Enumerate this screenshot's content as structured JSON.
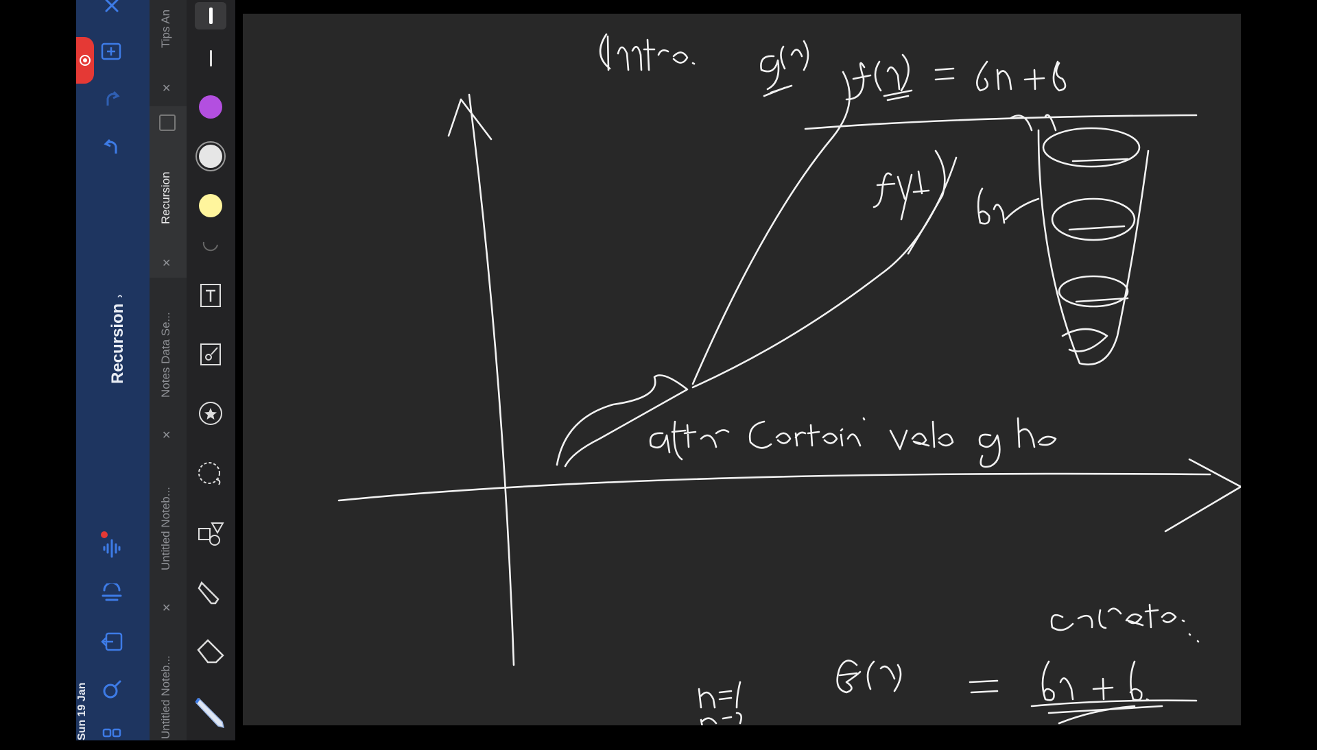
{
  "sidebar": {
    "notebook_title": "Recursion",
    "date": "Sun 19 Jan",
    "icons": [
      "close-icon",
      "add-page-icon",
      "redo-icon",
      "undo-icon",
      "audio-record-icon",
      "transcribe-icon",
      "export-icon",
      "search-icon",
      "grid-view-icon"
    ]
  },
  "tabs": [
    {
      "label": "Tips An",
      "active": false
    },
    {
      "label": "Recursion",
      "active": true
    },
    {
      "label": "Notes Data Se...",
      "active": false
    },
    {
      "label": "Untitled Noteb...",
      "active": false
    },
    {
      "label": "Untitled Noteb...",
      "active": false
    }
  ],
  "toolbar": {
    "swatches": [
      "#b34fe0",
      "#e6e6e6",
      "#fff59d"
    ],
    "tools": [
      "text-tool-icon",
      "image-tool-icon",
      "sticker-tool-icon",
      "lasso-tool-icon",
      "shapes-tool-icon",
      "highlighter-tool-icon",
      "eraser-tool-icon",
      "pen-tool-icon"
    ]
  },
  "canvas": {
    "background": "#282828",
    "ink_color": "#f2f2f2"
  }
}
